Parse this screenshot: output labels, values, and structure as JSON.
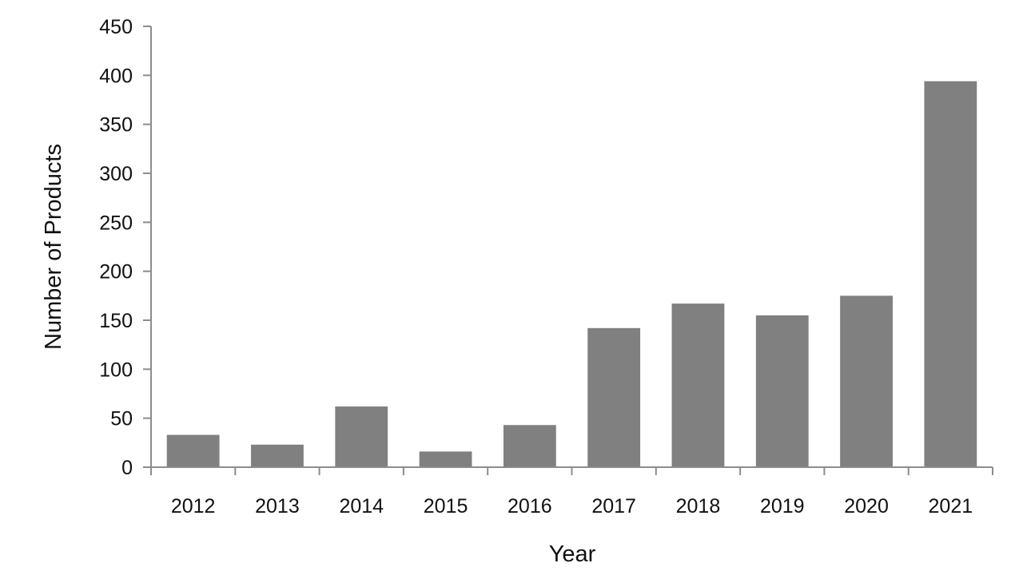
{
  "chart_data": {
    "type": "bar",
    "title": "",
    "xlabel": "Year",
    "ylabel": "Number of Products",
    "categories": [
      "2012",
      "2013",
      "2014",
      "2015",
      "2016",
      "2017",
      "2018",
      "2019",
      "2020",
      "2021"
    ],
    "values": [
      33,
      23,
      62,
      16,
      43,
      142,
      167,
      155,
      175,
      394
    ],
    "ylim": [
      0,
      450
    ],
    "yticks": [
      0,
      50,
      100,
      150,
      200,
      250,
      300,
      350,
      400,
      450
    ],
    "grid": false,
    "legend": "none",
    "bar_color": "#808080",
    "axis_color": "#8c8c8c"
  }
}
